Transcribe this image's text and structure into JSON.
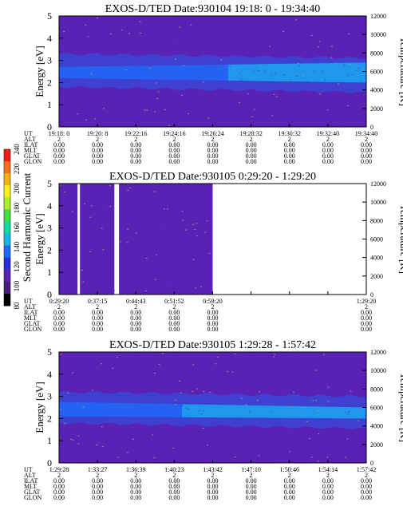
{
  "colors": {
    "background": "#5a22b4",
    "band_dark": "#3f40d0",
    "band_mid": "#2463f2",
    "band_light": "#1ea0ec",
    "speckle": "#c8a06a",
    "frame": "#000000"
  },
  "colorbar": {
    "label": "Second Harmonic Current",
    "ticks": [
      "80",
      "100",
      "120",
      "140",
      "160",
      "180",
      "200",
      "220",
      "240"
    ],
    "colors": [
      "#000000",
      "#4a1e78",
      "#5a22b4",
      "#2a30d8",
      "#1e6cf0",
      "#18b4e8",
      "#18d8a0",
      "#40e040",
      "#a8f030",
      "#f8f020",
      "#f8b018",
      "#f87018",
      "#f02010"
    ]
  },
  "chart_data": [
    {
      "type": "heatmap",
      "title": "EXOS-D/TED  Date:930104  19:18: 0 - 19:34:40",
      "ylabel": "Energy [eV]",
      "y2label": "Temperature [K]",
      "ylim": [
        0,
        5
      ],
      "yticks": [
        "0",
        "1",
        "2",
        "3",
        "4",
        "5"
      ],
      "y2lim": [
        0,
        12000
      ],
      "y2ticks": [
        "0",
        "2000",
        "4000",
        "6000",
        "8000",
        "10000",
        "12000"
      ],
      "xticks": [
        "19:18: 0",
        "19:20: 8",
        "19:22:16",
        "19:24:16",
        "19:26:24",
        "19:28:32",
        "19:30:32",
        "19:32:40",
        "19:34:40"
      ],
      "band": {
        "low_eV": [
          1.8,
          1.55
        ],
        "high_eV": [
          3.3,
          3.1
        ],
        "core_low_eV": [
          2.2,
          2.0
        ],
        "core_high_eV": [
          2.7,
          2.9
        ],
        "light_from_fraction": 0.55
      },
      "data_coverage": [
        [
          0,
          1
        ]
      ],
      "info_rows": [
        {
          "label": "UT",
          "values": [
            "",
            "",
            "",
            "",
            "",
            "",
            "",
            "",
            ""
          ]
        },
        {
          "label": "ALT",
          "values": [
            "2",
            "2",
            "2",
            "2",
            "2",
            "2",
            "2",
            "2",
            "2"
          ]
        },
        {
          "label": "ILAT",
          "values": [
            "0.00",
            "0.00",
            "0.00",
            "0.00",
            "0.00",
            "0.00",
            "0.00",
            "0.00",
            "0.00"
          ]
        },
        {
          "label": "MLT",
          "values": [
            "0.00",
            "0.00",
            "0.00",
            "0.00",
            "0.00",
            "0.00",
            "0.00",
            "0.00",
            "0.00"
          ]
        },
        {
          "label": "GLAT",
          "values": [
            "0.00",
            "0.00",
            "0.00",
            "0.00",
            "0.00",
            "0.00",
            "0.00",
            "0.00",
            "0.00"
          ]
        },
        {
          "label": "GLON",
          "values": [
            "0.00",
            "0.00",
            "0.00",
            "0.00",
            "0.00",
            "0.00",
            "0.00",
            "0.00",
            "0.00"
          ]
        }
      ]
    },
    {
      "type": "heatmap",
      "title": "EXOS-D/TED   Date:930105   0:29:20 - 1:29:20",
      "ylabel": "Energy [eV]",
      "y2label": "Temperature [K]",
      "ylim": [
        0,
        5
      ],
      "yticks": [
        "0",
        "1",
        "2",
        "3",
        "4",
        "5"
      ],
      "y2lim": [
        0,
        12000
      ],
      "y2ticks": [
        "0",
        "2000",
        "4000",
        "6000",
        "8000",
        "10000",
        "12000"
      ],
      "xticks": [
        "0:29:20",
        "0:37:15",
        "0:44:43",
        "0:51:52",
        "0:59:20",
        "",
        "",
        "",
        "1:29:20"
      ],
      "band": null,
      "data_coverage": [
        [
          0,
          0.06
        ],
        [
          0.068,
          0.18
        ],
        [
          0.195,
          0.5
        ]
      ],
      "info_rows": [
        {
          "label": "UT",
          "values": [
            "",
            "",
            "",
            "",
            "",
            "",
            "",
            "",
            ""
          ]
        },
        {
          "label": "ALT",
          "values": [
            "2",
            "2",
            "2",
            "2",
            "2",
            "",
            "",
            "",
            "2"
          ]
        },
        {
          "label": "ILAT",
          "values": [
            "0.00",
            "0.00",
            "0.00",
            "0.00",
            "0.00",
            "",
            "",
            "",
            "0.00"
          ]
        },
        {
          "label": "MLT",
          "values": [
            "0.00",
            "0.00",
            "0.00",
            "0.00",
            "0.00",
            "",
            "",
            "",
            "0.00"
          ]
        },
        {
          "label": "GLAT",
          "values": [
            "0.00",
            "0.00",
            "0.00",
            "0.00",
            "0.00",
            "",
            "",
            "",
            "0.00"
          ]
        },
        {
          "label": "GLON",
          "values": [
            "0.00",
            "0.00",
            "0.00",
            "0.00",
            "0.00",
            "",
            "",
            "",
            "0.00"
          ]
        }
      ]
    },
    {
      "type": "heatmap",
      "title": "EXOS-D/TED   Date:930105   1:29:28 - 1:57:42",
      "ylabel": "Energy [eV]",
      "y2label": "Temperature [K]",
      "ylim": [
        0,
        5
      ],
      "yticks": [
        "0",
        "1",
        "2",
        "3",
        "4",
        "5"
      ],
      "y2lim": [
        0,
        12000
      ],
      "y2ticks": [
        "0",
        "2000",
        "4000",
        "6000",
        "8000",
        "10000",
        "12000"
      ],
      "xticks": [
        "1:29:28",
        "1:33:27",
        "1:36:39",
        "1:40:23",
        "1:43:42",
        "1:47:10",
        "1:50:46",
        "1:54:14",
        "1:57:42"
      ],
      "band": {
        "low_eV": [
          1.8,
          1.55
        ],
        "high_eV": [
          3.2,
          3.0
        ],
        "core_low_eV": [
          2.1,
          2.0
        ],
        "core_high_eV": [
          2.75,
          2.5
        ],
        "light_from_fraction": 0.4
      },
      "data_coverage": [
        [
          0,
          1
        ]
      ],
      "info_rows": [
        {
          "label": "UT",
          "values": [
            "",
            "",
            "",
            "",
            "",
            "",
            "",
            "",
            ""
          ]
        },
        {
          "label": "ALT",
          "values": [
            "2",
            "2",
            "2",
            "2",
            "2",
            "2",
            "2",
            "2",
            "2"
          ]
        },
        {
          "label": "ILAT",
          "values": [
            "0.00",
            "0.00",
            "0.00",
            "0.00",
            "0.00",
            "0.00",
            "0.00",
            "0.00",
            "0.00"
          ]
        },
        {
          "label": "MLT",
          "values": [
            "0.00",
            "0.00",
            "0.00",
            "0.00",
            "0.00",
            "0.00",
            "0.00",
            "0.00",
            "0.00"
          ]
        },
        {
          "label": "GLAT",
          "values": [
            "0.00",
            "0.00",
            "0.00",
            "0.00",
            "0.00",
            "0.00",
            "0.00",
            "0.00",
            "0.00"
          ]
        },
        {
          "label": "GLON",
          "values": [
            "0.00",
            "0.00",
            "0.00",
            "0.00",
            "0.00",
            "0.00",
            "0.00",
            "0.00",
            "0.00"
          ]
        }
      ]
    }
  ]
}
